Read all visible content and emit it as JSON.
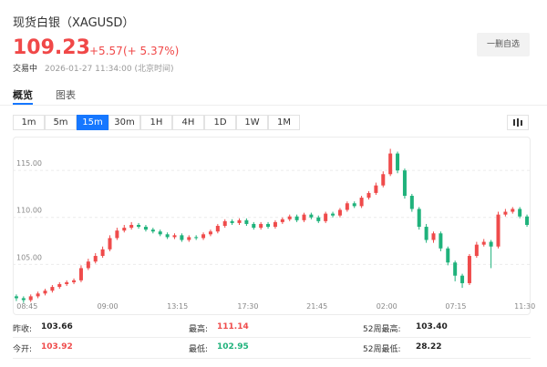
{
  "header": {
    "title": "现货白银（XAGUSD）",
    "price": "109.23",
    "change": "+5.57",
    "change_pct": "(+ 5.37%)",
    "status": "交易中",
    "time": "2026-01-27 11:34:00 (北京时间)",
    "button": "一删自选"
  },
  "tabs": [
    "概览",
    "图表"
  ],
  "intervals": [
    "1m",
    "5m",
    "15m",
    "30m",
    "1H",
    "4H",
    "1D",
    "1W",
    "1M"
  ],
  "chart_data": {
    "type": "candlestick",
    "up_color": "#ef4b4b",
    "down_color": "#1fb27b",
    "xlim": [
      0,
      72
    ],
    "xticks": [
      {
        "value": 2,
        "label": "08:45"
      },
      {
        "value": 13.2,
        "label": "09:00"
      },
      {
        "value": 22.9,
        "label": "13:15"
      },
      {
        "value": 32.7,
        "label": "17:30"
      },
      {
        "value": 42.3,
        "label": "21:45"
      },
      {
        "value": 52,
        "label": "02:00"
      },
      {
        "value": 61.6,
        "label": "07:15"
      },
      {
        "value": 71.2,
        "label": "11:30"
      }
    ],
    "ylim": [
      99.7,
      118.6
    ],
    "yticks": [
      {
        "value": 105,
        "label": "105.00"
      },
      {
        "value": 110,
        "label": "110.00"
      },
      {
        "value": 115,
        "label": "115.00"
      }
    ],
    "grid": true,
    "open": [
      101.6,
      101.4,
      101.2,
      101.6,
      101.9,
      102.2,
      102.6,
      102.9,
      103.1,
      103.3,
      104.6,
      105.3,
      105.9,
      106.6,
      107.8,
      108.6,
      108.9,
      109.2,
      109.0,
      108.7,
      108.5,
      108.2,
      107.9,
      108.1,
      107.6,
      107.9,
      107.8,
      108.2,
      108.5,
      109.1,
      109.6,
      109.4,
      109.7,
      109.3,
      108.9,
      109.3,
      109.0,
      109.5,
      109.8,
      110.1,
      109.7,
      110.3,
      110.0,
      109.6,
      110.4,
      110.2,
      110.8,
      111.5,
      111.2,
      112.1,
      112.6,
      113.4,
      114.6,
      116.8,
      115.0,
      112.3,
      110.9,
      109.0,
      107.6,
      108.3,
      106.7,
      105.2,
      103.8,
      103.0,
      105.9,
      107.1,
      107.4,
      106.9,
      110.3,
      110.6,
      110.9,
      110.1
    ],
    "close": [
      101.4,
      101.2,
      101.6,
      101.9,
      102.2,
      102.6,
      102.9,
      103.1,
      103.3,
      104.6,
      105.3,
      105.9,
      106.6,
      107.8,
      108.6,
      108.9,
      109.2,
      109.0,
      108.7,
      108.5,
      108.2,
      107.9,
      108.1,
      107.6,
      107.9,
      107.8,
      108.2,
      108.5,
      109.1,
      109.6,
      109.4,
      109.7,
      109.3,
      108.9,
      109.3,
      109.0,
      109.5,
      109.8,
      110.1,
      109.7,
      110.3,
      110.0,
      109.6,
      110.4,
      110.2,
      110.8,
      111.5,
      111.2,
      112.1,
      112.6,
      113.4,
      114.6,
      116.8,
      115.0,
      112.3,
      110.9,
      109.0,
      107.6,
      108.3,
      106.7,
      105.2,
      103.8,
      103.0,
      105.9,
      107.1,
      107.4,
      106.9,
      110.3,
      110.6,
      110.9,
      110.1,
      109.2
    ],
    "high": [
      101.8,
      101.6,
      101.8,
      102.1,
      102.4,
      102.8,
      103.1,
      103.3,
      103.5,
      104.9,
      105.6,
      106.2,
      106.9,
      108.1,
      108.9,
      109.2,
      109.5,
      109.4,
      109.2,
      108.9,
      108.7,
      108.4,
      108.3,
      108.3,
      108.1,
      108.1,
      108.4,
      108.7,
      109.3,
      109.8,
      109.8,
      109.9,
      109.9,
      109.5,
      109.5,
      109.5,
      109.7,
      110.0,
      110.3,
      110.3,
      110.5,
      110.5,
      110.2,
      110.6,
      110.6,
      111.0,
      111.7,
      111.7,
      112.3,
      112.8,
      113.7,
      114.9,
      117.3,
      117.0,
      115.2,
      112.5,
      111.1,
      109.3,
      108.5,
      108.5,
      106.9,
      105.4,
      104.0,
      106.1,
      107.4,
      107.7,
      107.6,
      110.6,
      110.9,
      111.1,
      111.1,
      110.3
    ],
    "low": [
      101.1,
      100.9,
      101.0,
      101.4,
      101.7,
      102.0,
      102.4,
      102.7,
      102.9,
      103.1,
      104.4,
      105.1,
      105.7,
      106.4,
      107.6,
      108.4,
      108.7,
      108.8,
      108.5,
      108.3,
      108.0,
      107.7,
      107.7,
      107.4,
      107.4,
      107.6,
      107.6,
      108.0,
      108.3,
      108.9,
      109.2,
      109.2,
      109.1,
      108.7,
      108.7,
      108.8,
      108.8,
      109.3,
      109.6,
      109.5,
      109.5,
      109.8,
      109.4,
      109.4,
      110.0,
      110.0,
      110.6,
      111.0,
      111.0,
      111.9,
      112.4,
      113.2,
      114.4,
      114.7,
      112.0,
      110.6,
      108.7,
      107.3,
      107.3,
      106.4,
      104.9,
      103.2,
      102.5,
      102.8,
      105.7,
      106.9,
      104.6,
      106.7,
      110.1,
      110.4,
      109.9,
      109.0
    ]
  },
  "stats": [
    {
      "label": "昨收:",
      "value": "103.66",
      "color": "#222"
    },
    {
      "label": "最高:",
      "value": "111.14",
      "color": "#ef4b4b"
    },
    {
      "label": "52周最高:",
      "value": "103.40",
      "color": "#222"
    },
    {
      "label": "今开:",
      "value": "103.92",
      "color": "#ef4b4b"
    },
    {
      "label": "最低:",
      "value": "102.95",
      "color": "#1fb27b"
    },
    {
      "label": "52周最低:",
      "value": "28.22",
      "color": "#222"
    }
  ]
}
